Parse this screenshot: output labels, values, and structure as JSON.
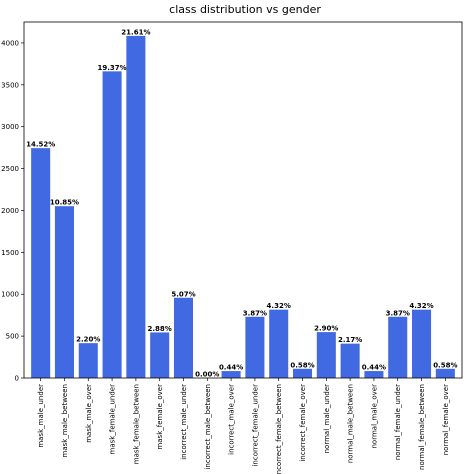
{
  "chart_data": {
    "type": "bar",
    "title": "class distribution vs gender",
    "categories": [
      "mask_male_under",
      "mask_male_between",
      "mask_male_over",
      "mask_female_under",
      "mask_female_between",
      "mask_female_over",
      "incorrect_male_under",
      "incorrect_male_between",
      "incorrect_male_over",
      "incorrect_female_under",
      "incorrect_female_between",
      "incorrect_female_over",
      "normal_male_under",
      "normal_male_between",
      "normal_male_over",
      "normal_female_under",
      "normal_female_between",
      "normal_female_over"
    ],
    "values": [
      2744,
      2051,
      416,
      3661,
      4084,
      544,
      958,
      0,
      83,
      731,
      816,
      110,
      548,
      410,
      83,
      731,
      816,
      110
    ],
    "annotations": [
      "14.52%",
      "10.85%",
      "2.20%",
      "19.37%",
      "21.61%",
      "2.88%",
      "5.07%",
      "0.00%",
      "0.44%",
      "3.87%",
      "4.32%",
      "0.58%",
      "2.90%",
      "2.17%",
      "0.44%",
      "3.87%",
      "4.32%",
      "0.58%"
    ],
    "color": "#4169e1",
    "ylim": [
      0,
      4250
    ],
    "yticks": [
      0,
      500,
      1000,
      1500,
      2000,
      2500,
      3000,
      3500,
      4000
    ]
  }
}
